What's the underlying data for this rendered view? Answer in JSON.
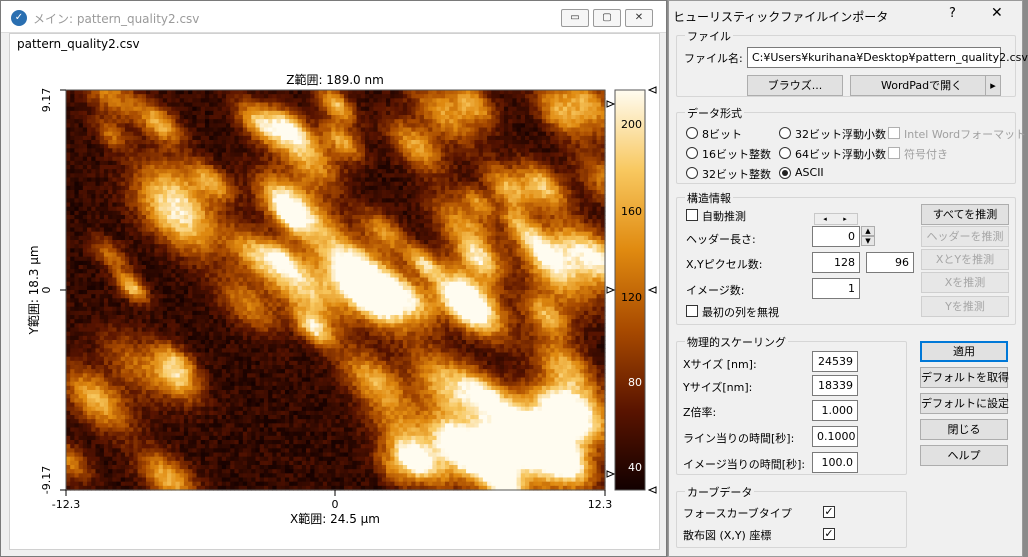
{
  "viewer": {
    "title": "メイン: pattern_quality2.csv",
    "filename": "pattern_quality2.csv",
    "minimize_glyph": "▭",
    "maximize_glyph": "▢",
    "close_glyph": "✕",
    "z_range_label": "Z範囲:  189.0 nm",
    "x_range_label": "X範囲:  24.5 µm",
    "y_range_label": "Y範囲:  18.3 µm",
    "x_ticks": [
      "-12.3",
      "0",
      "12.3"
    ],
    "y_ticks": [
      "9.17",
      "0",
      "-9.17"
    ],
    "colorbar_ticks": [
      "200",
      "160",
      "120",
      "80",
      "40"
    ],
    "colormap": [
      "#120000",
      "#5a1400",
      "#a84a00",
      "#e08a10",
      "#f8c860",
      "#fffcf0"
    ]
  },
  "dialog": {
    "title": "ヒューリスティックファイルインポータ",
    "help_glyph": "?",
    "close_glyph": "✕",
    "file_group": {
      "legend": "ファイル",
      "filename_label": "ファイル名:",
      "filename_value": "C:¥Users¥kurihana¥Desktop¥pattern_quality2.csv",
      "browse_button": "ブラウズ...",
      "open_wordpad_button": "WordPadで開く",
      "arrow_glyph": "▸"
    },
    "format_group": {
      "legend": "データ形式",
      "options": [
        "8ビット",
        "16ビット整数",
        "32ビット整数",
        "32ビット浮動小数",
        "64ビット浮動小数",
        "ASCII"
      ],
      "selected": "ASCII",
      "intel_word": "Intel Wordフォーマット",
      "signed": "符号付き"
    },
    "structure_group": {
      "legend": "構造情報",
      "auto_guess": "自動推測",
      "guess_all": "すべてを推測",
      "header_length_label": "ヘッダー長さ:",
      "header_length_value": "0",
      "guess_header": "ヘッダーを推測",
      "xy_pixels_label": "X,Yピクセル数:",
      "x_pixels": "128",
      "y_pixels": "96",
      "guess_xy": "XとYを推測",
      "guess_x": "Xを推測",
      "guess_y": "Yを推測",
      "image_count_label": "イメージ数:",
      "image_count_value": "1",
      "ignore_first_column": "最初の列を無視",
      "arrow_left": "◂",
      "arrow_right": "▸",
      "spin_up": "▲",
      "spin_down": "▼"
    },
    "scaling_group": {
      "legend": "物理的スケーリング",
      "x_size_label": "Xサイズ [nm]:",
      "x_size_value": "24539",
      "y_size_label": "Yサイズ[nm]:",
      "y_size_value": "18339",
      "z_factor_label": "Z倍率:",
      "z_factor_value": "1.000",
      "line_time_label": "ライン当りの時間[秒]:",
      "line_time_value": "0.1000",
      "image_time_label": "イメージ当りの時間[秒]:",
      "image_time_value": "100.0"
    },
    "side_buttons": {
      "apply": "適用",
      "get_default": "デフォルトを取得",
      "set_default": "デフォルトに設定",
      "close": "閉じる",
      "help": "ヘルプ"
    },
    "curve_group": {
      "legend": "カーブデータ",
      "force_curve_type": "フォースカーブタイプ",
      "scatter_xy": "散布図 (X,Y) 座標",
      "check_glyph": "✓"
    }
  }
}
